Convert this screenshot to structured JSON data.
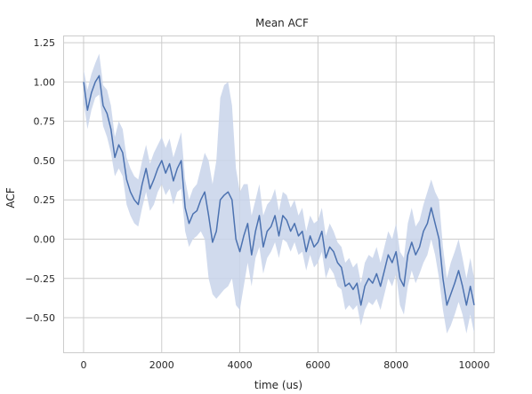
{
  "chart_data": {
    "type": "line",
    "title": "Mean ACF",
    "xlabel": "time (us)",
    "ylabel": "ACF",
    "xlim": [
      -500,
      10500
    ],
    "ylim": [
      -0.72,
      1.29
    ],
    "xticks": [
      0,
      2000,
      4000,
      6000,
      8000,
      10000
    ],
    "xtick_labels": [
      "0",
      "2000",
      "4000",
      "6000",
      "8000",
      "10000"
    ],
    "yticks": [
      -0.5,
      -0.25,
      0.0,
      0.25,
      0.5,
      0.75,
      1.0,
      1.25
    ],
    "ytick_labels": [
      "−0.50",
      "−0.25",
      "0.00",
      "0.25",
      "0.50",
      "0.75",
      "1.00",
      "1.25"
    ],
    "grid": true,
    "colors": {
      "line": "#4c72b0",
      "band": "#c8d4ea",
      "grid": "#cccccc"
    },
    "series": [
      {
        "x": [
          0,
          100,
          200,
          300,
          400,
          500,
          600,
          700,
          800,
          900,
          1000,
          1100,
          1200,
          1300,
          1400,
          1500,
          1600,
          1700,
          1800,
          1900,
          2000,
          2100,
          2200,
          2300,
          2400,
          2500,
          2600,
          2700,
          2800,
          2900,
          3000,
          3100,
          3200,
          3300,
          3400,
          3500,
          3600,
          3700,
          3800,
          3900,
          4000,
          4100,
          4200,
          4300,
          4400,
          4500,
          4600,
          4700,
          4800,
          4900,
          5000,
          5100,
          5200,
          5300,
          5400,
          5500,
          5600,
          5700,
          5800,
          5900,
          6000,
          6100,
          6200,
          6300,
          6400,
          6500,
          6600,
          6700,
          6800,
          6900,
          7000,
          7100,
          7200,
          7300,
          7400,
          7500,
          7600,
          7700,
          7800,
          7900,
          8000,
          8100,
          8200,
          8300,
          8400,
          8500,
          8600,
          8700,
          8800,
          8900,
          9000,
          9100,
          9200,
          9300,
          9400,
          9500,
          9600,
          9700,
          9800,
          9900,
          10000
        ],
        "y": [
          1.0,
          0.82,
          0.93,
          1.0,
          1.04,
          0.85,
          0.8,
          0.7,
          0.52,
          0.6,
          0.55,
          0.38,
          0.3,
          0.25,
          0.22,
          0.35,
          0.45,
          0.32,
          0.38,
          0.45,
          0.5,
          0.42,
          0.48,
          0.37,
          0.45,
          0.5,
          0.2,
          0.1,
          0.16,
          0.18,
          0.25,
          0.3,
          0.15,
          -0.02,
          0.05,
          0.25,
          0.28,
          0.3,
          0.25,
          0.0,
          -0.08,
          0.02,
          0.1,
          -0.1,
          0.05,
          0.15,
          -0.05,
          0.05,
          0.08,
          0.15,
          0.02,
          0.15,
          0.12,
          0.05,
          0.1,
          0.02,
          0.05,
          -0.08,
          0.02,
          -0.05,
          -0.02,
          0.05,
          -0.12,
          -0.05,
          -0.08,
          -0.15,
          -0.18,
          -0.3,
          -0.28,
          -0.32,
          -0.28,
          -0.42,
          -0.3,
          -0.25,
          -0.28,
          -0.22,
          -0.3,
          -0.2,
          -0.1,
          -0.15,
          -0.08,
          -0.25,
          -0.3,
          -0.1,
          -0.02,
          -0.1,
          -0.05,
          0.05,
          0.1,
          0.2,
          0.1,
          0.0,
          -0.25,
          -0.42,
          -0.35,
          -0.28,
          -0.2,
          -0.3,
          -0.42,
          -0.3,
          -0.42
        ],
        "lower": [
          0.88,
          0.7,
          0.82,
          0.9,
          0.92,
          0.72,
          0.65,
          0.55,
          0.4,
          0.45,
          0.4,
          0.22,
          0.15,
          0.1,
          0.08,
          0.2,
          0.3,
          0.18,
          0.22,
          0.3,
          0.35,
          0.28,
          0.32,
          0.22,
          0.3,
          0.32,
          0.05,
          -0.05,
          0.0,
          0.02,
          0.05,
          0.0,
          -0.25,
          -0.35,
          -0.38,
          -0.35,
          -0.32,
          -0.3,
          -0.25,
          -0.42,
          -0.45,
          -0.3,
          -0.15,
          -0.3,
          -0.12,
          -0.05,
          -0.22,
          -0.12,
          -0.08,
          -0.02,
          -0.12,
          0.0,
          -0.02,
          -0.08,
          -0.02,
          -0.1,
          -0.08,
          -0.2,
          -0.1,
          -0.18,
          -0.15,
          -0.08,
          -0.25,
          -0.18,
          -0.22,
          -0.3,
          -0.32,
          -0.45,
          -0.42,
          -0.45,
          -0.42,
          -0.55,
          -0.45,
          -0.4,
          -0.42,
          -0.38,
          -0.45,
          -0.35,
          -0.25,
          -0.3,
          -0.22,
          -0.42,
          -0.48,
          -0.3,
          -0.2,
          -0.28,
          -0.22,
          -0.15,
          -0.1,
          0.0,
          -0.1,
          -0.25,
          -0.45,
          -0.6,
          -0.55,
          -0.48,
          -0.4,
          -0.48,
          -0.6,
          -0.48,
          -0.6
        ],
        "upper": [
          1.08,
          0.95,
          1.05,
          1.12,
          1.18,
          0.98,
          0.95,
          0.85,
          0.65,
          0.75,
          0.7,
          0.52,
          0.45,
          0.4,
          0.38,
          0.5,
          0.6,
          0.48,
          0.55,
          0.6,
          0.65,
          0.58,
          0.64,
          0.52,
          0.6,
          0.68,
          0.38,
          0.25,
          0.32,
          0.35,
          0.45,
          0.55,
          0.5,
          0.35,
          0.5,
          0.9,
          0.98,
          1.0,
          0.85,
          0.45,
          0.3,
          0.35,
          0.35,
          0.15,
          0.25,
          0.35,
          0.15,
          0.22,
          0.25,
          0.32,
          0.18,
          0.3,
          0.28,
          0.2,
          0.25,
          0.15,
          0.2,
          0.05,
          0.15,
          0.1,
          0.12,
          0.2,
          0.02,
          0.1,
          0.05,
          -0.02,
          -0.05,
          -0.15,
          -0.12,
          -0.18,
          -0.15,
          -0.28,
          -0.15,
          -0.1,
          -0.12,
          -0.05,
          -0.15,
          -0.05,
          0.05,
          0.0,
          0.1,
          -0.08,
          -0.12,
          0.1,
          0.2,
          0.08,
          0.12,
          0.22,
          0.3,
          0.38,
          0.3,
          0.25,
          -0.05,
          -0.25,
          -0.15,
          -0.08,
          0.0,
          -0.12,
          -0.25,
          -0.12,
          -0.25
        ]
      }
    ]
  }
}
